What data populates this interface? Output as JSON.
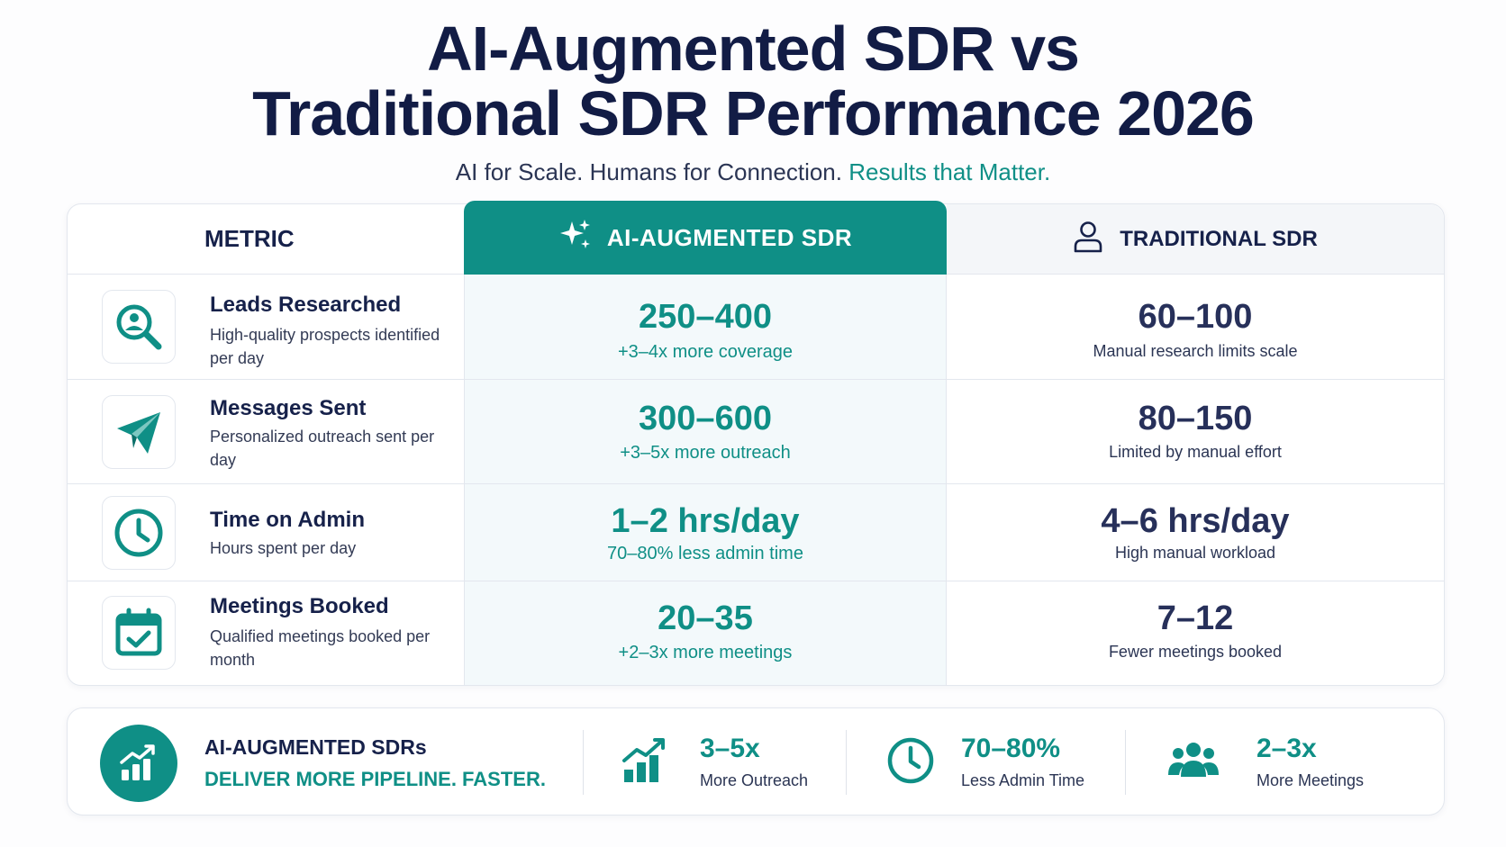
{
  "header": {
    "title_line1": "AI-Augmented SDR vs",
    "title_line2": "Traditional SDR Performance 2026",
    "subtitle_main": "AI for Scale. Humans for Connection.",
    "subtitle_accent": "Results that Matter."
  },
  "colors": {
    "accent": "#0f8f86",
    "navy": "#16214a",
    "border": "#e3e7ee"
  },
  "table": {
    "headers": {
      "metric": "METRIC",
      "ai": "AI-AUGMENTED SDR",
      "traditional": "TRADITIONAL SDR"
    },
    "rows": [
      {
        "icon": "search-person-icon",
        "title": "Leads Researched",
        "desc": "High-quality prospects identified per day",
        "ai_value": "250–400",
        "ai_note": "+3–4x more coverage",
        "trad_value": "60–100",
        "trad_note": "Manual research limits scale"
      },
      {
        "icon": "paper-plane-icon",
        "title": "Messages Sent",
        "desc": "Personalized outreach sent per day",
        "ai_value": "300–600",
        "ai_note": "+3–5x more outreach",
        "trad_value": "80–150",
        "trad_note": "Limited by manual effort"
      },
      {
        "icon": "clock-icon",
        "title": "Time on Admin",
        "desc": "Hours spent per day",
        "ai_value": "1–2 hrs/day",
        "ai_note": "70–80% less admin time",
        "trad_value": "4–6 hrs/day",
        "trad_note": "High manual workload"
      },
      {
        "icon": "calendar-check-icon",
        "title": "Meetings Booked",
        "desc": "Qualified meetings booked per month",
        "ai_value": "20–35",
        "ai_note": "+2–3x more meetings",
        "trad_value": "7–12",
        "trad_note": "Fewer meetings booked"
      }
    ]
  },
  "footer": {
    "line1": "AI-AUGMENTED SDRs",
    "line2": "DELIVER MORE PIPELINE. FASTER.",
    "stats": [
      {
        "icon": "bar-chart-up-icon",
        "value": "3–5x",
        "label": "More Outreach"
      },
      {
        "icon": "clock-icon",
        "value": "70–80%",
        "label": "Less Admin Time"
      },
      {
        "icon": "people-group-icon",
        "value": "2–3x",
        "label": "More Meetings"
      }
    ]
  }
}
